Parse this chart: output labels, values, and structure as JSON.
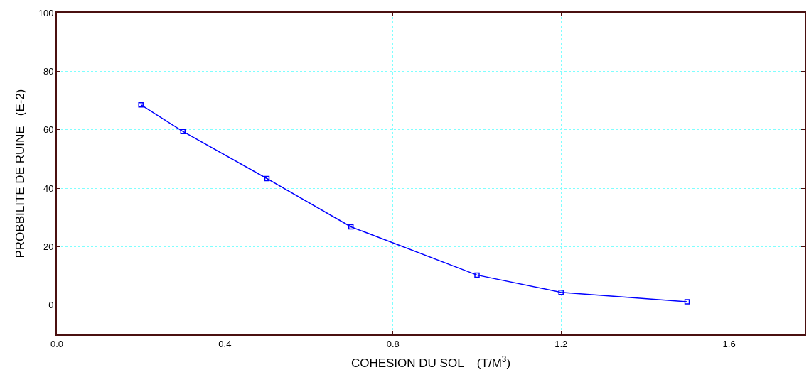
{
  "chart_data": {
    "type": "line",
    "xlabel": "COHESION DU SOL    (T/M$^{3}$)",
    "ylabel": "PROBBILITE DE RUINE   (E-2)",
    "x": [
      0.2,
      0.3,
      0.5,
      0.7,
      1.0,
      1.2,
      1.5
    ],
    "series": [
      {
        "color": "#0000ff",
        "values": [
          68.5,
          59.4,
          43.3,
          26.8,
          10.3,
          4.4,
          1.2
        ]
      }
    ],
    "xlim": [
      0,
      1.78
    ],
    "xticks": [
      {
        "value": 0,
        "label": "0.0"
      },
      0.4,
      0.8,
      1.2,
      1.6
    ],
    "ylim": [
      -10,
      100
    ],
    "yticks": [
      0,
      20,
      40,
      60,
      80,
      100
    ],
    "grid": true,
    "marker": "square",
    "line_style": "solid",
    "legend": false
  }
}
